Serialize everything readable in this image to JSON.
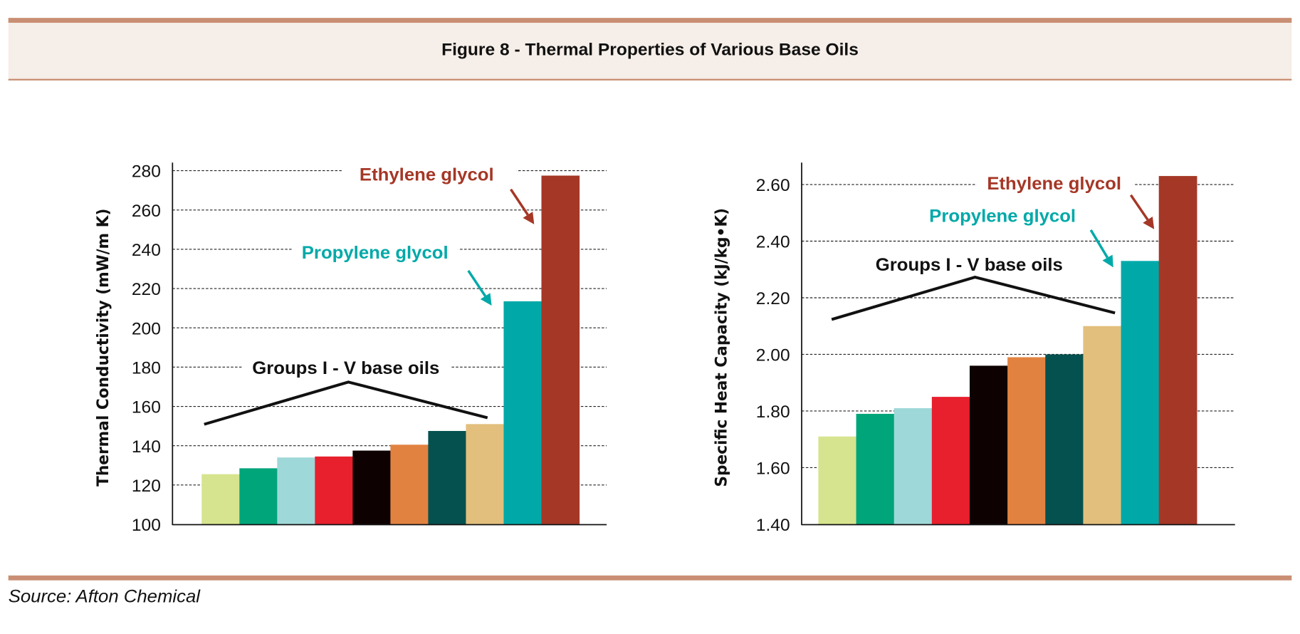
{
  "header": {
    "title": "Figure 8 - Thermal Properties of Various Base Oils"
  },
  "footer": {
    "source": "Source: Afton Chemical"
  },
  "colors": {
    "rule": "#c98f74",
    "band": "#f6eee8",
    "ethylene": "#a53726",
    "propylene": "#00a9a8"
  },
  "bar_colors": [
    "#d6e48f",
    "#00a57a",
    "#9fd8d8",
    "#e81f2d",
    "#0d0101",
    "#e28241",
    "#04514f",
    "#e2bf7c",
    "#00a9a8",
    "#a53726"
  ],
  "chart_data": [
    {
      "type": "bar",
      "ylabel": "Thermal Conductivity (mW/m K)",
      "ylim": [
        100,
        280
      ],
      "yticks": [
        100,
        120,
        140,
        160,
        180,
        200,
        220,
        240,
        260,
        280
      ],
      "ytick_labels": [
        "100",
        "120",
        "140",
        "160",
        "180",
        "200",
        "220",
        "240",
        "260",
        "280"
      ],
      "grid": true,
      "values": [
        125.5,
        128.5,
        134,
        134.5,
        137.5,
        140.5,
        147.5,
        151,
        213.5,
        277.5
      ],
      "annotations": {
        "groups": "Groups I - V base oils",
        "propylene": "Propylene glycol",
        "ethylene": "Ethylene glycol"
      }
    },
    {
      "type": "bar",
      "ylabel": "Specific Heat Capacity (kJ/kg•K)",
      "ylim": [
        1.4,
        2.66
      ],
      "yticks": [
        1.4,
        1.6,
        1.8,
        2.0,
        2.2,
        2.4,
        2.6
      ],
      "ytick_labels": [
        "1.40",
        "1.60",
        "1.80",
        "2.00",
        "2.20",
        "2.40",
        "2.60"
      ],
      "grid": true,
      "values": [
        1.71,
        1.79,
        1.81,
        1.85,
        1.96,
        1.99,
        2.0,
        2.1,
        2.33,
        2.63
      ],
      "annotations": {
        "groups": "Groups I - V base oils",
        "propylene": "Propylene glycol",
        "ethylene": "Ethylene glycol"
      }
    }
  ]
}
